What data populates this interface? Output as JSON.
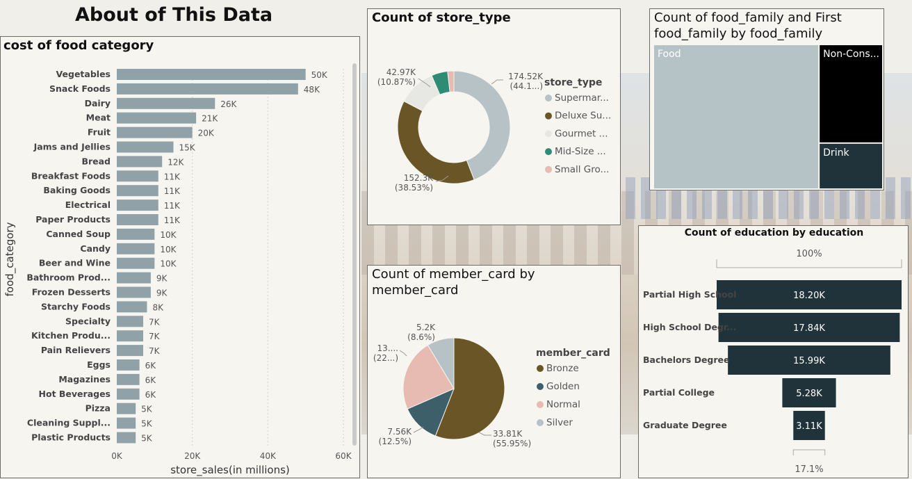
{
  "page": {
    "title": "About of This Data"
  },
  "colors": {
    "bar": "#91a1a8",
    "dark": "#21333a",
    "bronze": "#6a5526",
    "golden": "#3d5f6a",
    "normal": "#e7bbb1",
    "silver": "#b7c2c6",
    "gourmet": "#e7e7e4",
    "midsize": "#2f8c74",
    "small": "#e7bbb1",
    "treemap_food": "#b6c3c6",
    "treemap_noncons": "#000000",
    "treemap_drink": "#21333a"
  },
  "chart_data": [
    {
      "id": "food_category",
      "type": "bar",
      "orientation": "horizontal",
      "title": "cost of food category",
      "xlabel": "store_sales(in millions)",
      "ylabel": "food_category",
      "xlim": [
        0,
        60000
      ],
      "xticks": [
        "0K",
        "20K",
        "40K",
        "60K"
      ],
      "grid": true,
      "categories": [
        "Vegetables",
        "Snack Foods",
        "Dairy",
        "Meat",
        "Fruit",
        "Jams and Jellies",
        "Bread",
        "Breakfast Foods",
        "Baking Goods",
        "Electrical",
        "Paper Products",
        "Canned Soup",
        "Candy",
        "Beer and Wine",
        "Bathroom Prod...",
        "Frozen Desserts",
        "Starchy Foods",
        "Specialty",
        "Kitchen Produ...",
        "Pain Relievers",
        "Eggs",
        "Magazines",
        "Hot Beverages",
        "Pizza",
        "Cleaning Suppl...",
        "Plastic Products"
      ],
      "values": [
        50000,
        48000,
        26000,
        21000,
        20000,
        15000,
        12000,
        11000,
        11000,
        11000,
        11000,
        10000,
        10000,
        10000,
        9000,
        9000,
        8000,
        7000,
        7000,
        7000,
        6000,
        6000,
        6000,
        5000,
        5000,
        5000
      ],
      "labels": [
        "50K",
        "48K",
        "26K",
        "21K",
        "20K",
        "15K",
        "12K",
        "11K",
        "11K",
        "11K",
        "11K",
        "10K",
        "10K",
        "10K",
        "9K",
        "9K",
        "8K",
        "7K",
        "7K",
        "7K",
        "6K",
        "6K",
        "6K",
        "5K",
        "5K",
        "5K"
      ]
    },
    {
      "id": "store_type",
      "type": "pie",
      "variant": "donut",
      "title": "Count of store_type",
      "legend_title": "store_type",
      "legend_position": "right",
      "slices": [
        {
          "name": "Supermar...",
          "value": 174.52,
          "label_value": "174.52K",
          "label_pct": "(44.1...)",
          "color": "#b7c2c6"
        },
        {
          "name": "Deluxe Su...",
          "value": 152.3,
          "label_value": "152.3K",
          "label_pct": "(38.53%)",
          "color": "#6a5526"
        },
        {
          "name": "Gourmet ...",
          "value": 42.97,
          "label_value": "42.97K",
          "label_pct": "(10.87%)",
          "color": "#e7e7e4"
        },
        {
          "name": "Mid-Size ...",
          "value": 18.5,
          "label_value": "",
          "label_pct": "",
          "color": "#2f8c74"
        },
        {
          "name": "Small Gro...",
          "value": 7.1,
          "label_value": "",
          "label_pct": "",
          "color": "#e7bbb1"
        }
      ]
    },
    {
      "id": "food_family",
      "type": "treemap",
      "title_line1": "Count of food_family and First",
      "title_line2": "food_family by food_family",
      "items": [
        {
          "name": "Food",
          "value": 72,
          "color": "#b6c3c6",
          "text_color": "#ffffff"
        },
        {
          "name": "Non-Cons...",
          "value": 19,
          "color": "#000000",
          "text_color": "#ffffff"
        },
        {
          "name": "Drink",
          "value": 9,
          "color": "#21333a",
          "text_color": "#ffffff"
        }
      ]
    },
    {
      "id": "member_card",
      "type": "pie",
      "title_line1": "Count of member_card by",
      "title_line2": "member_card",
      "legend_title": "member_card",
      "legend_position": "right",
      "slices": [
        {
          "name": "Bronze",
          "value": 33.81,
          "label_value": "33.81K",
          "label_pct": "(55.95%)",
          "color": "#6a5526"
        },
        {
          "name": "Golden",
          "value": 7.56,
          "label_value": "7.56K",
          "label_pct": "(12.5%)",
          "color": "#3d5f6a"
        },
        {
          "name": "Normal",
          "value": 13.87,
          "label_value": "13....",
          "label_pct": "(22...)",
          "color": "#e7bbb1"
        },
        {
          "name": "Silver",
          "value": 5.2,
          "label_value": "5.2K",
          "label_pct": "(8.6%)",
          "color": "#b7c2c6"
        }
      ]
    },
    {
      "id": "education",
      "type": "bar",
      "variant": "funnel",
      "title": "Count of education by education",
      "top_label": "100%",
      "bottom_label": "17.1%",
      "categories": [
        "Partial High School",
        "High School Degr...",
        "Bachelors Degree",
        "Partial College",
        "Graduate Degree"
      ],
      "values": [
        18.2,
        17.84,
        15.99,
        5.28,
        3.11
      ],
      "labels": [
        "18.20K",
        "17.84K",
        "15.99K",
        "5.28K",
        "3.11K"
      ]
    }
  ]
}
